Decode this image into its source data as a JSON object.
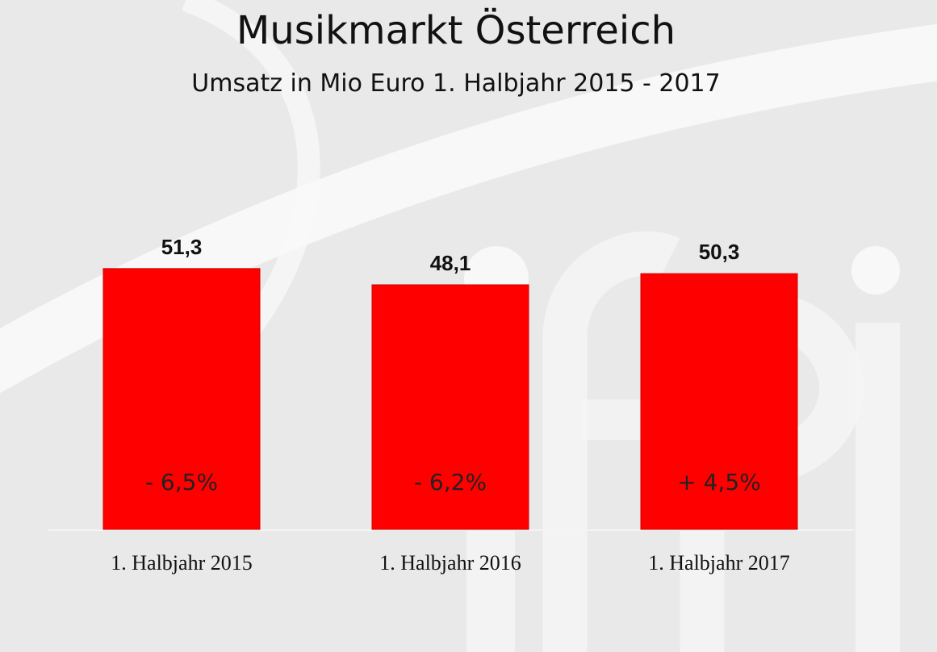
{
  "chart_data": {
    "type": "bar",
    "title": "Musikmarkt Österreich",
    "subtitle": "Umsatz in Mio Euro 1. Halbjahr 2015 - 2017",
    "categories": [
      "1. Halbjahr 2015",
      "1. Halbjahr 2016",
      "1. Halbjahr 2017"
    ],
    "values": [
      51.3,
      48.1,
      50.3
    ],
    "value_labels": [
      "51,3",
      "48,1",
      "50,3"
    ],
    "change_labels": [
      "- 6,5%",
      "- 6,2%",
      "+ 4,5%"
    ],
    "xlabel": "",
    "ylabel": "",
    "grid": false,
    "legend": "none",
    "bar_color": "#ff0000"
  },
  "colors": {
    "background": "#e9e9e9",
    "bar": "#ff0000",
    "watermark": "#ffffff"
  },
  "watermark": {
    "text": "ifpi"
  }
}
